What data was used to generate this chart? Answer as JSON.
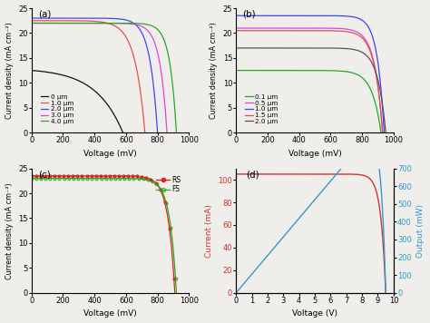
{
  "fig_background": "#f0eeea",
  "panel_a": {
    "label": "(a)",
    "curves": [
      {
        "label": "0 μm",
        "color": "#111111",
        "Jsc": 12.5,
        "Voc": 580,
        "FF": 0.45
      },
      {
        "label": "1.0 μm",
        "color": "#e05050",
        "Jsc": 22.5,
        "Voc": 720,
        "FF": 0.72
      },
      {
        "label": "2.0 μm",
        "color": "#4444ee",
        "Jsc": 23.0,
        "Voc": 800,
        "FF": 0.78
      },
      {
        "label": "3.0 μm",
        "color": "#dd44dd",
        "Jsc": 22.0,
        "Voc": 860,
        "FF": 0.8
      },
      {
        "label": "4.0 μm",
        "color": "#22aa22",
        "Jsc": 22.0,
        "Voc": 920,
        "FF": 0.82
      }
    ],
    "xlabel": "Voltage (mV)",
    "ylabel": "Current density (mA cm⁻²)",
    "xlim": [
      0,
      1000
    ],
    "ylim": [
      0,
      25
    ],
    "xticks": [
      0,
      200,
      400,
      600,
      800,
      1000
    ],
    "yticks": [
      0,
      5,
      10,
      15,
      20,
      25
    ]
  },
  "panel_b": {
    "label": "(b)",
    "curves": [
      {
        "label": "0.1 μm",
        "color": "#22aa22",
        "Jsc": 12.5,
        "Voc": 920,
        "FF": 0.78
      },
      {
        "label": "0.5 μm",
        "color": "#dd44dd",
        "Jsc": 21.0,
        "Voc": 930,
        "FF": 0.8
      },
      {
        "label": "1.0 μm",
        "color": "#4444ee",
        "Jsc": 23.5,
        "Voc": 940,
        "FF": 0.82
      },
      {
        "label": "1.5 μm",
        "color": "#e05050",
        "Jsc": 20.5,
        "Voc": 930,
        "FF": 0.8
      },
      {
        "label": "2.0 μm",
        "color": "#555555",
        "Jsc": 17.0,
        "Voc": 950,
        "FF": 0.8
      }
    ],
    "xlabel": "Voltage (mV)",
    "ylabel": "Current density (mA cm⁻²)",
    "xlim": [
      0,
      1000
    ],
    "ylim": [
      0,
      25
    ],
    "xticks": [
      0,
      200,
      400,
      600,
      800,
      1000
    ],
    "yticks": [
      0,
      5,
      10,
      15,
      20,
      25
    ]
  },
  "panel_c": {
    "label": "(c)",
    "rs": {
      "label": "RS",
      "color": "#dd2222",
      "Jsc": 23.5,
      "Voc": 910,
      "FF": 0.815
    },
    "fs": {
      "label": "FS",
      "color": "#22aa22",
      "Jsc": 23.0,
      "Voc": 920,
      "FF": 0.82
    },
    "xlabel": "Voltage (mV)",
    "ylabel": "Current density (mA cm⁻²)",
    "xlim": [
      0,
      1000
    ],
    "ylim": [
      0,
      25
    ],
    "xticks": [
      0,
      200,
      400,
      600,
      800,
      1000
    ],
    "yticks": [
      0,
      5,
      10,
      15,
      20,
      25
    ]
  },
  "panel_d": {
    "label": "(d)",
    "current_color": "#cc3333",
    "output_color": "#3399cc",
    "current_label": "Current (mA)",
    "output_label": "Output (mW)",
    "xlabel": "Voltage (V)",
    "current_ylabel": "Current (mA)",
    "output_ylabel": "Output (mW)",
    "xlim": [
      0,
      10
    ],
    "ylim_current": [
      0,
      110
    ],
    "ylim_output": [
      0,
      700
    ],
    "xticks": [
      0,
      1,
      2,
      3,
      4,
      5,
      6,
      7,
      8,
      9,
      10
    ],
    "yticks_current": [
      0,
      20,
      40,
      60,
      80,
      100
    ],
    "yticks_output": [
      0,
      100,
      200,
      300,
      400,
      500,
      600,
      700
    ],
    "Isc": 105.0,
    "Voc_V": 9.5,
    "n_diode": 12.0
  }
}
